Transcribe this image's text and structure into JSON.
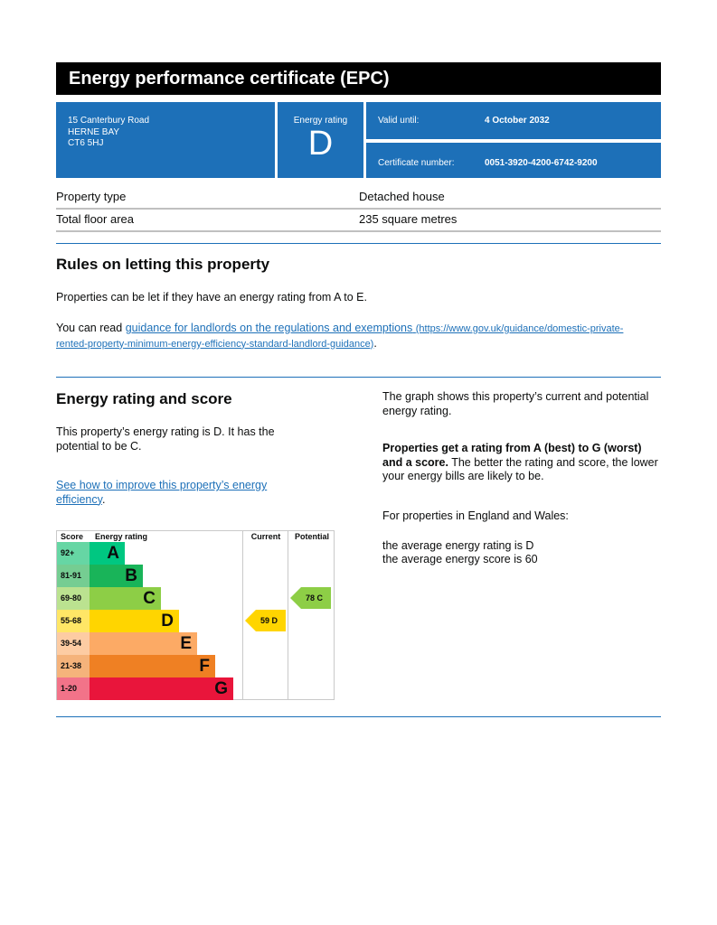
{
  "title": "Energy performance certificate (EPC)",
  "address": [
    "15 Canterbury Road",
    "HERNE BAY",
    "CT6 5HJ"
  ],
  "rating_box": {
    "label": "Energy rating",
    "value": "D"
  },
  "valid": {
    "label": "Valid until:",
    "value": "4 October 2032"
  },
  "cert": {
    "label": "Certificate number:",
    "value": "0051-3920-4200-6742-9200"
  },
  "property": [
    {
      "k": "Property type",
      "v": "Detached house"
    },
    {
      "k": "Total floor area",
      "v": "235 square metres"
    }
  ],
  "rules": {
    "heading": "Rules on letting this property",
    "p1": "Properties can be let if they have an energy rating from A to E.",
    "p2_pre": "You can read ",
    "p2_link": "guidance for landlords on the regulations and exemptions",
    "p2_url": "(https://www.gov.uk/guidance/domestic-private-rented-property-minimum-energy-efficiency-standard-landlord-guidance)",
    "p2_post": "."
  },
  "score": {
    "heading": "Energy rating and score",
    "p1": "This property’s energy rating is D. It has the potential to be C.",
    "link": "See how to improve this property’s energy efficiency",
    "link_post": ".",
    "r1": "The graph shows this property’s current and potential energy rating.",
    "r2_bold": "Properties get a rating from A (best) to G (worst) and a score.",
    "r2": " The better the rating and score, the lower your energy bills are likely to be.",
    "r3": "For properties in England and Wales:",
    "r4": "the average energy rating is D",
    "r5": "the average energy score is 60"
  },
  "chart_data": {
    "type": "bar",
    "headers": {
      "score": "Score",
      "rating": "Energy rating",
      "current": "Current",
      "potential": "Potential"
    },
    "bands": [
      {
        "letter": "A",
        "range": "92+",
        "color": "#00c781",
        "light": "#66d6a4"
      },
      {
        "letter": "B",
        "range": "81-91",
        "color": "#19b459",
        "light": "#75cd92"
      },
      {
        "letter": "C",
        "range": "69-80",
        "color": "#8dce46",
        "light": "#bbe290"
      },
      {
        "letter": "D",
        "range": "55-68",
        "color": "#ffd500",
        "light": "#ffe666"
      },
      {
        "letter": "E",
        "range": "39-54",
        "color": "#fcaa65",
        "light": "#fdcca3"
      },
      {
        "letter": "F",
        "range": "21-38",
        "color": "#ef8023",
        "light": "#f5b37b"
      },
      {
        "letter": "G",
        "range": "1-20",
        "color": "#e9153b",
        "light": "#f27389"
      }
    ],
    "current": {
      "score": 59,
      "letter": "D",
      "label": "59  D"
    },
    "potential": {
      "score": 78,
      "letter": "C",
      "label": "78  C"
    }
  }
}
